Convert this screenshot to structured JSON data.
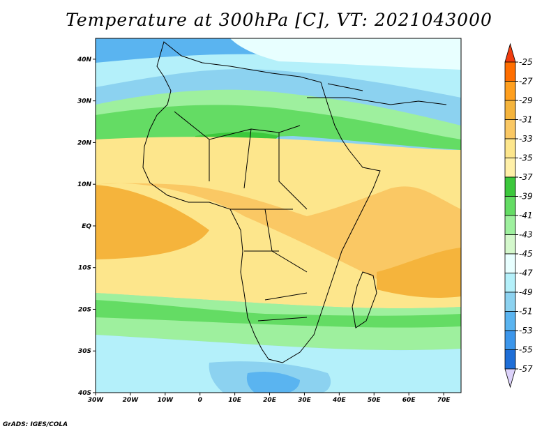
{
  "title": "Temperature at 300hPa [C], VT: 2021043000",
  "credit": "GrADS: IGES/COLA",
  "map": {
    "lon_range": [
      -30,
      75
    ],
    "lat_range": [
      -40,
      45
    ],
    "lat_ticks": [
      {
        "value": 40,
        "label": "40N"
      },
      {
        "value": 30,
        "label": "30N"
      },
      {
        "value": 20,
        "label": "20N"
      },
      {
        "value": 10,
        "label": "10N"
      },
      {
        "value": 0,
        "label": "EQ"
      },
      {
        "value": -10,
        "label": "10S"
      },
      {
        "value": -20,
        "label": "20S"
      },
      {
        "value": -30,
        "label": "30S"
      },
      {
        "value": -40,
        "label": "40S"
      }
    ],
    "lon_ticks": [
      {
        "value": -30,
        "label": "30W"
      },
      {
        "value": -20,
        "label": "20W"
      },
      {
        "value": -10,
        "label": "10W"
      },
      {
        "value": 0,
        "label": "0"
      },
      {
        "value": 10,
        "label": "10E"
      },
      {
        "value": 20,
        "label": "20E"
      },
      {
        "value": 30,
        "label": "30E"
      },
      {
        "value": 40,
        "label": "40E"
      },
      {
        "value": 50,
        "label": "50E"
      },
      {
        "value": 60,
        "label": "60E"
      },
      {
        "value": 70,
        "label": "70E"
      }
    ]
  },
  "colorbar": {
    "labels": [
      "-25",
      "-27",
      "-29",
      "-31",
      "-33",
      "-35",
      "-37",
      "-39",
      "-41",
      "-43",
      "-45",
      "-47",
      "-49",
      "-51",
      "-53",
      "-55",
      "-57"
    ],
    "colors": [
      "#f03c0f",
      "#ff6e00",
      "#ff9f1e",
      "#f5b43c",
      "#fac864",
      "#fde68c",
      "#fff0a8",
      "#3cc83c",
      "#64dc64",
      "#9ef09e",
      "#d4f8cc",
      "#e8ffff",
      "#b4f0fa",
      "#8cd2f0",
      "#5ab4f0",
      "#3c96eb",
      "#1e6ed7",
      "#1450c8",
      "#0a2896",
      "#0a1464",
      "#dcd2fa"
    ]
  }
}
